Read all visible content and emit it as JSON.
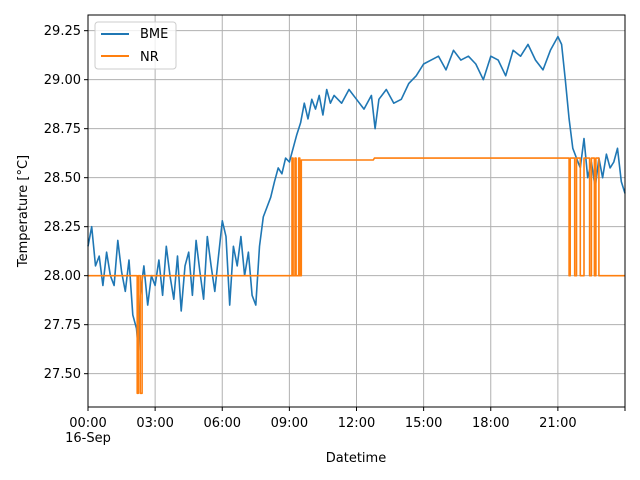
{
  "chart_data": {
    "type": "line",
    "xlabel": "Datetime",
    "ylabel": "Temperature [°C]",
    "date_label": "16-Sep",
    "xlim": [
      "00:00",
      "24:00"
    ],
    "ylim": [
      27.33,
      29.33
    ],
    "x_ticks": [
      "00:00",
      "03:00",
      "06:00",
      "09:00",
      "12:00",
      "15:00",
      "18:00",
      "21:00"
    ],
    "y_ticks": [
      "27.50",
      "27.75",
      "28.00",
      "28.25",
      "28.50",
      "28.75",
      "29.00",
      "29.25"
    ],
    "grid": true,
    "legend_position": "top-left",
    "series": [
      {
        "name": "BME",
        "color": "#1f77b4",
        "x": [
          "00:00",
          "00:10",
          "00:20",
          "00:30",
          "00:40",
          "00:50",
          "01:00",
          "01:10",
          "01:20",
          "01:30",
          "01:40",
          "01:50",
          "02:00",
          "02:10",
          "02:15",
          "02:20",
          "02:30",
          "02:40",
          "02:50",
          "03:00",
          "03:10",
          "03:20",
          "03:30",
          "03:40",
          "03:50",
          "04:00",
          "04:10",
          "04:20",
          "04:30",
          "04:40",
          "04:50",
          "05:00",
          "05:10",
          "05:20",
          "05:30",
          "05:40",
          "05:50",
          "06:00",
          "06:10",
          "06:20",
          "06:30",
          "06:40",
          "06:50",
          "07:00",
          "07:10",
          "07:20",
          "07:30",
          "07:40",
          "07:50",
          "08:00",
          "08:10",
          "08:20",
          "08:30",
          "08:40",
          "08:50",
          "09:00",
          "09:10",
          "09:20",
          "09:30",
          "09:40",
          "09:50",
          "10:00",
          "10:10",
          "10:20",
          "10:30",
          "10:40",
          "10:50",
          "11:00",
          "11:20",
          "11:40",
          "12:00",
          "12:20",
          "12:40",
          "12:50",
          "13:00",
          "13:20",
          "13:40",
          "14:00",
          "14:20",
          "14:40",
          "15:00",
          "15:20",
          "15:40",
          "16:00",
          "16:20",
          "16:40",
          "17:00",
          "17:20",
          "17:40",
          "18:00",
          "18:20",
          "18:40",
          "19:00",
          "19:20",
          "19:40",
          "20:00",
          "20:20",
          "20:40",
          "21:00",
          "21:10",
          "21:20",
          "21:30",
          "21:40",
          "21:50",
          "22:00",
          "22:10",
          "22:20",
          "22:30",
          "22:40",
          "22:50",
          "23:00",
          "23:10",
          "23:20",
          "23:30",
          "23:40",
          "23:50",
          "24:00"
        ],
        "values": [
          28.15,
          28.25,
          28.05,
          28.1,
          27.95,
          28.12,
          28.0,
          27.95,
          28.18,
          28.02,
          27.92,
          28.08,
          27.8,
          27.73,
          27.62,
          27.9,
          28.05,
          27.85,
          28.0,
          27.95,
          28.08,
          27.9,
          28.15,
          28.0,
          27.88,
          28.1,
          27.82,
          28.05,
          28.12,
          27.9,
          28.18,
          28.02,
          27.88,
          28.2,
          28.05,
          27.92,
          28.1,
          28.28,
          28.2,
          27.85,
          28.15,
          28.05,
          28.2,
          28.0,
          28.12,
          27.9,
          27.85,
          28.15,
          28.3,
          28.35,
          28.4,
          28.48,
          28.55,
          28.52,
          28.6,
          28.58,
          28.65,
          28.72,
          28.78,
          28.88,
          28.8,
          28.9,
          28.85,
          28.92,
          28.82,
          28.95,
          28.88,
          28.92,
          28.88,
          28.95,
          28.9,
          28.85,
          28.92,
          28.75,
          28.9,
          28.95,
          28.88,
          28.9,
          28.98,
          29.02,
          29.08,
          29.1,
          29.12,
          29.05,
          29.15,
          29.1,
          29.12,
          29.08,
          29.0,
          29.12,
          29.1,
          29.02,
          29.15,
          29.12,
          29.18,
          29.1,
          29.05,
          29.15,
          29.22,
          29.18,
          29.0,
          28.8,
          28.65,
          28.6,
          28.55,
          28.7,
          28.5,
          28.58,
          28.45,
          28.6,
          28.5,
          28.62,
          28.55,
          28.58,
          28.65,
          28.48,
          28.42
        ]
      },
      {
        "name": "NR",
        "color": "#ff7f0e",
        "x": [
          "00:00",
          "02:12",
          "02:12",
          "02:15",
          "02:15",
          "02:20",
          "02:20",
          "02:25",
          "02:25",
          "02:30",
          "02:30",
          "09:07",
          "09:07",
          "09:10",
          "09:10",
          "09:15",
          "09:15",
          "09:18",
          "09:18",
          "09:25",
          "09:25",
          "09:28",
          "09:28",
          "09:32",
          "09:32",
          "09:35",
          "09:35",
          "12:45",
          "12:48",
          "21:30",
          "21:30",
          "21:33",
          "21:33",
          "21:45",
          "21:45",
          "21:50",
          "21:50",
          "22:00",
          "22:00",
          "22:10",
          "22:10",
          "22:25",
          "22:25",
          "22:30",
          "22:30",
          "22:38",
          "22:38",
          "22:42",
          "22:42",
          "22:50",
          "22:50",
          "23:00",
          "23:00",
          "24:00"
        ],
        "values": [
          28.0,
          28.0,
          27.4,
          27.4,
          28.0,
          28.0,
          27.4,
          27.4,
          28.0,
          28.0,
          28.0,
          28.0,
          28.6,
          28.6,
          28.0,
          28.0,
          28.6,
          28.6,
          28.0,
          28.0,
          28.6,
          28.6,
          28.0,
          28.0,
          28.59,
          28.59,
          28.59,
          28.59,
          28.6,
          28.6,
          28.0,
          28.0,
          28.6,
          28.6,
          28.0,
          28.0,
          28.6,
          28.6,
          28.0,
          28.0,
          28.6,
          28.6,
          28.0,
          28.0,
          28.6,
          28.6,
          28.0,
          28.0,
          28.6,
          28.6,
          28.0,
          28.0,
          28.0,
          28.0
        ]
      }
    ]
  }
}
